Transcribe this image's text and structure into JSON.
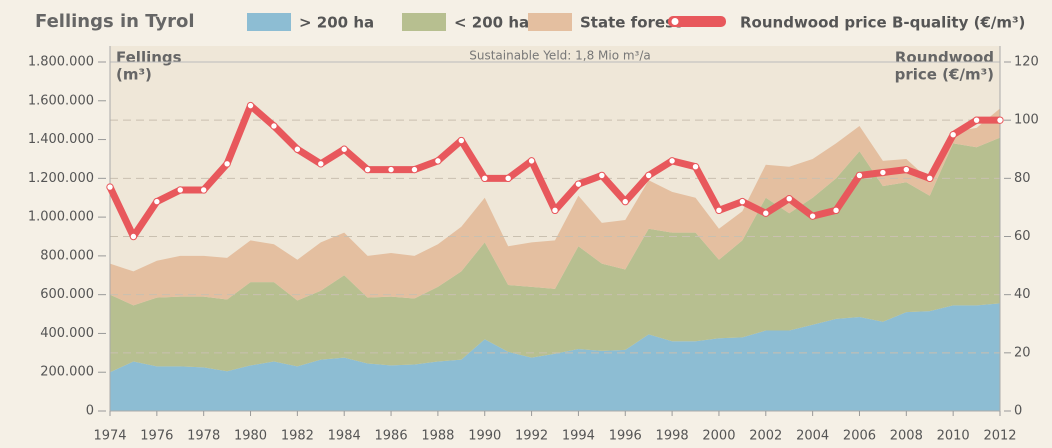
{
  "chart_data": {
    "type": "area",
    "title": "Fellings in Tyrol",
    "y_label": [
      "Fellings",
      "(m³)"
    ],
    "y2_label": [
      "Roundwood",
      "price (€/m³)"
    ],
    "annotation": "Sustainable Yeld: 1,8 Mio m³/a",
    "x": [
      1974,
      1975,
      1976,
      1977,
      1978,
      1979,
      1980,
      1981,
      1982,
      1983,
      1984,
      1985,
      1986,
      1987,
      1988,
      1989,
      1990,
      1991,
      1992,
      1993,
      1994,
      1995,
      1996,
      1997,
      1998,
      1999,
      2000,
      2001,
      2002,
      2003,
      2004,
      2005,
      2006,
      2007,
      2008,
      2009,
      2010,
      2011,
      2012
    ],
    "xlim": [
      1974,
      2012
    ],
    "xticks": [
      1974,
      1976,
      1978,
      1980,
      1982,
      1984,
      1986,
      1988,
      1990,
      1992,
      1994,
      1996,
      1998,
      2000,
      2002,
      2004,
      2006,
      2008,
      2010,
      2012
    ],
    "ylim": [
      0,
      1800000
    ],
    "yticks": [
      0,
      {
        "value": 200000,
        "label": "200.000"
      },
      {
        "value": 400000,
        "label": "400.000"
      },
      {
        "value": 600000,
        "label": "600.000"
      },
      {
        "value": 800000,
        "label": "800.000"
      },
      {
        "value": 1000000,
        "label": "1.000.000"
      },
      {
        "value": 1200000,
        "label": "1.200.000"
      },
      {
        "value": 1400000,
        "label": "1.400.000"
      },
      {
        "value": 1600000,
        "label": "1.600.000"
      },
      {
        "value": 1800000,
        "label": "1.800.000"
      }
    ],
    "y2lim": [
      0,
      120
    ],
    "y2ticks": [
      0,
      20,
      40,
      60,
      80,
      100,
      120
    ],
    "grid": true,
    "series": [
      {
        "name": "> 200 ha",
        "color": "#8dbdd3",
        "values": [
          200000,
          255000,
          230000,
          230000,
          225000,
          205000,
          235000,
          255000,
          230000,
          265000,
          275000,
          245000,
          235000,
          240000,
          255000,
          265000,
          370000,
          305000,
          275000,
          295000,
          320000,
          310000,
          315000,
          395000,
          360000,
          360000,
          375000,
          380000,
          415000,
          415000,
          445000,
          475000,
          485000,
          460000,
          510000,
          515000,
          545000,
          545000,
          555000
        ]
      },
      {
        "name": "< 200 ha",
        "color": "#b7bf90",
        "values": [
          400000,
          290000,
          355000,
          360000,
          365000,
          370000,
          430000,
          410000,
          340000,
          355000,
          425000,
          340000,
          355000,
          340000,
          385000,
          455000,
          500000,
          345000,
          365000,
          335000,
          530000,
          450000,
          415000,
          545000,
          560000,
          560000,
          405000,
          500000,
          685000,
          605000,
          655000,
          725000,
          855000,
          700000,
          670000,
          595000,
          835000,
          815000,
          855000
        ]
      },
      {
        "name": "State forest",
        "color": "#e4bfa0",
        "values": [
          160000,
          175000,
          190000,
          210000,
          210000,
          215000,
          215000,
          195000,
          210000,
          250000,
          220000,
          215000,
          225000,
          220000,
          220000,
          230000,
          230000,
          200000,
          230000,
          250000,
          260000,
          210000,
          255000,
          250000,
          210000,
          180000,
          160000,
          150000,
          170000,
          240000,
          200000,
          180000,
          130000,
          130000,
          120000,
          80000,
          60000,
          100000,
          150000
        ]
      },
      {
        "name": "Roundwood price B-quality (€/m³)",
        "color": "#e8585c",
        "axis": "y2",
        "values": [
          77,
          60,
          72,
          76,
          76,
          85,
          105,
          98,
          90,
          85,
          90,
          83,
          83,
          83,
          86,
          93,
          80,
          80,
          86,
          69,
          78,
          81,
          72,
          81,
          86,
          84,
          69,
          72,
          68,
          73,
          67,
          69,
          81,
          82,
          83,
          80,
          95,
          100,
          100
        ]
      }
    ]
  }
}
